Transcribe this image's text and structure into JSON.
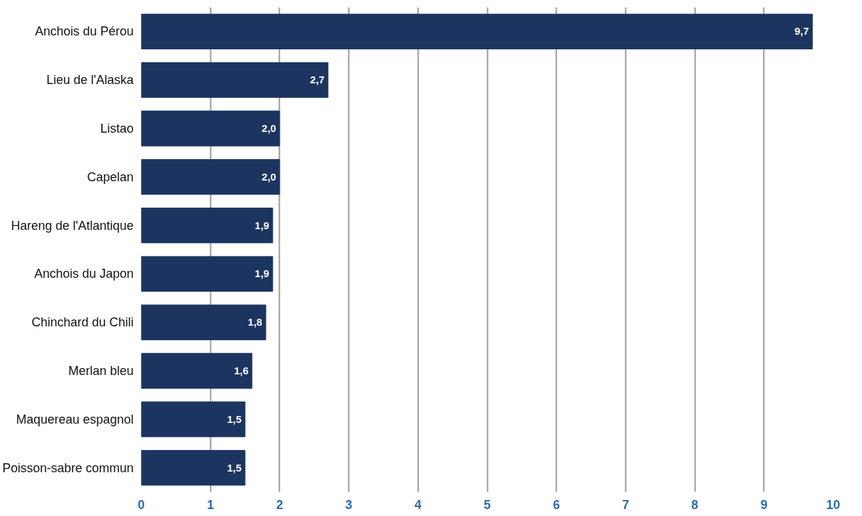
{
  "chart_data": {
    "type": "bar",
    "orientation": "horizontal",
    "categories": [
      "Anchois du Pérou",
      "Lieu de l'Alaska",
      "Listao",
      "Capelan",
      "Hareng de l'Atlantique",
      "Anchois du Japon",
      "Chinchard du Chili",
      "Merlan bleu",
      "Maquereau espagnol",
      "Poisson-sabre commun"
    ],
    "values": [
      9.7,
      2.7,
      2.0,
      2.0,
      1.9,
      1.9,
      1.8,
      1.6,
      1.5,
      1.5
    ],
    "value_labels": [
      "9,7",
      "2,7",
      "2,0",
      "2,0",
      "1,9",
      "1,9",
      "1,8",
      "1,6",
      "1,5",
      "1,5"
    ],
    "color": "#1c3560",
    "xlim": [
      0,
      10
    ],
    "xticks": [
      0,
      1,
      2,
      3,
      4,
      5,
      6,
      7,
      8,
      9,
      10
    ],
    "grid": "x"
  }
}
